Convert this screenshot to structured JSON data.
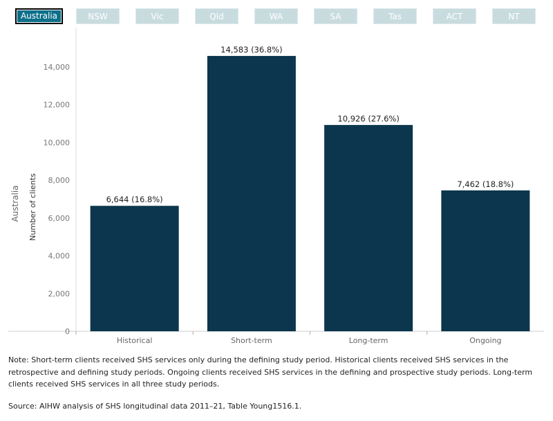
{
  "filters": {
    "options": [
      "Australia",
      "NSW",
      "Vic",
      "Qld",
      "WA",
      "SA",
      "Tas",
      "ACT",
      "NT"
    ],
    "selected": "Australia"
  },
  "chart_data": {
    "type": "bar",
    "row_label": "Australia",
    "ylabel": "Number of clients",
    "xlabel": "",
    "categories": [
      "Historical",
      "Short-term",
      "Long-term",
      "Ongoing"
    ],
    "values": [
      6644,
      14583,
      10926,
      7462
    ],
    "data_labels": [
      "6,644 (16.8%)",
      "14,583 (36.8%)",
      "10,926 (27.6%)",
      "7,462 (18.8%)"
    ],
    "yticks": [
      0,
      2000,
      4000,
      6000,
      8000,
      10000,
      12000,
      14000
    ],
    "ytick_labels": [
      "0",
      "2,000",
      "4,000",
      "6,000",
      "8,000",
      "10,000",
      "12,000",
      "14,000"
    ],
    "ylim": [
      0,
      15000
    ],
    "bar_color": "#0b364e",
    "grid": false
  },
  "note": "Note: Short-term clients received SHS services only during the defining study period. Historical clients received SHS services in the retrospective and defining study periods. Ongoing clients received SHS services in the defining and prospective study periods. Long-term clients received SHS services in all three study periods.",
  "source": "Source: AIHW analysis of SHS longitudinal data 2011–21, Table Young1516.1."
}
